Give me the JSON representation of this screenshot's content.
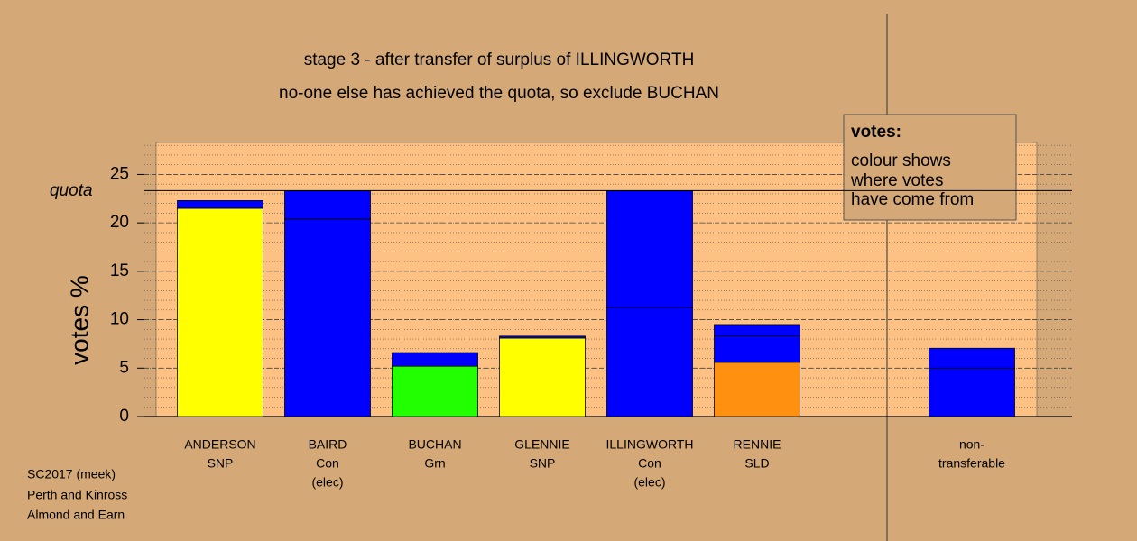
{
  "chart_data": {
    "type": "stacked_bar",
    "title": "stage 3 - after transfer of surplus of ILLINGWORTH",
    "subtitle": "no-one else has achieved the quota, so exclude BUCHAN",
    "y_label": "votes %",
    "categories": [
      [
        "ANDERSON",
        "SNP"
      ],
      [
        "BAIRD",
        "Con",
        "(elec)"
      ],
      [
        "BUCHAN",
        "Grn"
      ],
      [
        "GLENNIE",
        "SNP"
      ],
      [
        "ILLINGWORTH",
        "Con",
        "(elec)"
      ],
      [
        "RENNIE",
        "SLD"
      ],
      null,
      [
        "non-",
        "transferable"
      ]
    ],
    "series": [
      {
        "colors": [
          "#ffff00",
          "#0000ff",
          "#22ff00",
          "#ffff00",
          "#0000ff",
          "#ff9010",
          null,
          "#0000ff"
        ],
        "values": [
          21.5,
          20.4,
          5.2,
          8.1,
          11.25,
          5.6,
          null,
          5.0
        ]
      },
      {
        "colors": [
          "#0000ff",
          "#0000ff",
          "#0000ff",
          "#0000ff",
          "#0000ff",
          "#0000ff",
          null,
          "#0000ff"
        ],
        "values": [
          0.8,
          2.9,
          1.4,
          0.2,
          12.05,
          2.75,
          null,
          2.05
        ]
      },
      {
        "colors": [
          null,
          null,
          null,
          null,
          null,
          "#0000ff",
          null,
          null
        ],
        "values": [
          null,
          null,
          null,
          null,
          null,
          1.15,
          null,
          null
        ]
      }
    ],
    "quota": 23.33,
    "quota_label": "quota",
    "ylim": [
      0,
      28.3
    ],
    "yticks": [
      0,
      5,
      10,
      15,
      20,
      25
    ],
    "grid": true,
    "minor_grid": true,
    "legend": {
      "title": "votes:",
      "lines": [
        "colour shows",
        "where votes",
        "have come from"
      ]
    },
    "footnote": [
      "SC2017 (meek)",
      "Perth and Kinross",
      "Almond and Earn"
    ]
  }
}
